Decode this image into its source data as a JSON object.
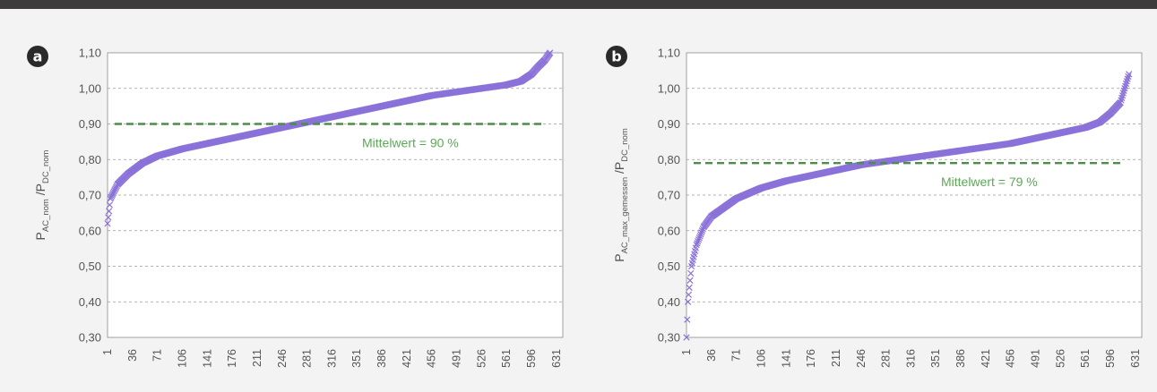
{
  "chart_data": [
    {
      "panel_label": "a",
      "type": "scatter",
      "marker": "x",
      "series_color": "#8a72d9",
      "ylabel_main_1": "P",
      "ylabel_sub_1": "AC_nom",
      "ylabel_main_2": " /P",
      "ylabel_sub_2": "DC_nom",
      "y_ticks": [
        "0,30",
        "0,40",
        "0,50",
        "0,60",
        "0,70",
        "0,80",
        "0,90",
        "1,00",
        "1,10"
      ],
      "ylim": [
        0.3,
        1.1
      ],
      "x_ticks": [
        "1",
        "36",
        "71",
        "106",
        "141",
        "176",
        "211",
        "246",
        "281",
        "316",
        "351",
        "386",
        "421",
        "456",
        "491",
        "526",
        "561",
        "596",
        "631"
      ],
      "xlim": [
        1,
        640
      ],
      "grid": true,
      "n_points": 622,
      "mean_value": 0.9,
      "mean_color": "#4a8f45",
      "mean_label": "Mittelwert = 90 %",
      "curve_x": [
        1,
        5,
        15,
        30,
        50,
        71,
        106,
        141,
        176,
        211,
        246,
        281,
        316,
        351,
        386,
        421,
        456,
        491,
        526,
        561,
        581,
        596,
        605,
        615,
        622
      ],
      "curve_y": [
        0.62,
        0.69,
        0.73,
        0.76,
        0.79,
        0.81,
        0.83,
        0.845,
        0.86,
        0.875,
        0.89,
        0.905,
        0.92,
        0.935,
        0.95,
        0.965,
        0.98,
        0.99,
        1.0,
        1.01,
        1.02,
        1.04,
        1.06,
        1.08,
        1.1
      ]
    },
    {
      "panel_label": "b",
      "type": "scatter",
      "marker": "x",
      "series_color": "#8a72d9",
      "ylabel_main_1": "P",
      "ylabel_sub_1": "AC_max_gemessen",
      "ylabel_main_2": " /P",
      "ylabel_sub_2": "DC_nom",
      "y_ticks": [
        "0,30",
        "0,40",
        "0,50",
        "0,60",
        "0,70",
        "0,80",
        "0,90",
        "1,00",
        "1,10"
      ],
      "ylim": [
        0.3,
        1.1
      ],
      "x_ticks": [
        "1",
        "36",
        "71",
        "106",
        "141",
        "176",
        "211",
        "246",
        "281",
        "316",
        "351",
        "386",
        "421",
        "456",
        "491",
        "526",
        "561",
        "596",
        "631"
      ],
      "xlim": [
        1,
        640
      ],
      "grid": true,
      "n_points": 622,
      "mean_value": 0.79,
      "mean_color": "#4a8f45",
      "mean_label": "Mittelwert = 79 %",
      "curve_x": [
        1,
        3,
        8,
        15,
        25,
        36,
        50,
        71,
        106,
        141,
        176,
        211,
        246,
        281,
        316,
        351,
        386,
        421,
        456,
        491,
        526,
        561,
        581,
        596,
        610,
        622
      ],
      "curve_y": [
        0.3,
        0.4,
        0.5,
        0.56,
        0.61,
        0.64,
        0.66,
        0.69,
        0.72,
        0.74,
        0.755,
        0.77,
        0.785,
        0.795,
        0.805,
        0.815,
        0.825,
        0.835,
        0.845,
        0.86,
        0.875,
        0.89,
        0.905,
        0.93,
        0.96,
        1.04
      ]
    }
  ]
}
